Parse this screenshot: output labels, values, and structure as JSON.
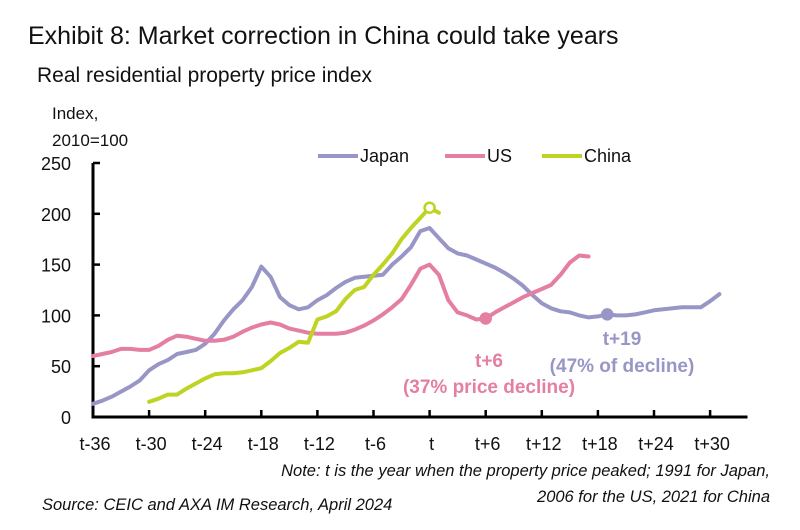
{
  "chart_data": {
    "type": "line",
    "title": "Exhibit 8: Market correction in China could take years",
    "subtitle": "Real residential property price index",
    "ylabel": "Index, 2010=100",
    "ylabel_lines": [
      "Index,",
      "2010=100"
    ],
    "xlabel": "",
    "ylim": [
      0,
      250
    ],
    "yticks": [
      0,
      50,
      100,
      150,
      200,
      250
    ],
    "xlim": [
      -36,
      34
    ],
    "xticks": [
      -36,
      -30,
      -24,
      -18,
      -12,
      -6,
      0,
      6,
      12,
      18,
      24,
      30
    ],
    "xtick_labels": [
      "t-36",
      "t-30",
      "t-24",
      "t-18",
      "t-12",
      "t-6",
      "t",
      "t+6",
      "t+12",
      "t+18",
      "t+24",
      "t+30"
    ],
    "grid": false,
    "legend_position": "top-center",
    "series": [
      {
        "name": "Japan",
        "color": "#9896c6",
        "x_start": -36,
        "values": [
          13,
          16,
          20,
          25,
          30,
          36,
          46,
          52,
          56,
          62,
          64,
          66,
          72,
          82,
          95,
          106,
          115,
          128,
          148,
          138,
          118,
          110,
          106,
          108,
          115,
          120,
          127,
          133,
          137,
          138,
          139,
          140,
          150,
          158,
          167,
          183,
          186,
          176,
          166,
          161,
          159,
          155,
          151,
          147,
          142,
          136,
          129,
          120,
          112,
          107,
          104,
          103,
          100,
          98,
          99,
          101,
          100,
          100,
          101,
          103,
          105,
          106,
          107,
          108,
          108,
          108,
          114,
          121
        ],
        "marker": {
          "x": 19,
          "value": 101,
          "style": "filled"
        }
      },
      {
        "name": "US",
        "color": "#e57ea3",
        "x_start": -36,
        "values": [
          60,
          62,
          64,
          67,
          67,
          66,
          66,
          70,
          76,
          80,
          79,
          77,
          75,
          75,
          76,
          79,
          84,
          88,
          91,
          93,
          91,
          87,
          85,
          83,
          82,
          82,
          82,
          83,
          86,
          90,
          95,
          101,
          108,
          116,
          130,
          146,
          150,
          140,
          115,
          103,
          100,
          96,
          97,
          103,
          108,
          113,
          118,
          122,
          126,
          130,
          140,
          152,
          159,
          158
        ],
        "marker": {
          "x": 6,
          "value": 97,
          "style": "filled"
        }
      },
      {
        "name": "China",
        "color": "#bed322",
        "x_start": -30,
        "values": [
          15,
          18,
          22,
          22,
          28,
          33,
          38,
          42,
          43,
          43,
          44,
          46,
          48,
          55,
          63,
          68,
          74,
          73,
          96,
          99,
          104,
          116,
          125,
          128,
          140,
          150,
          161,
          175,
          186,
          196,
          206,
          201
        ],
        "marker": {
          "x": 0,
          "value": 206,
          "style": "open"
        }
      }
    ],
    "annotations": [
      {
        "series": "US",
        "lines": [
          "t+6",
          "(37% price decline)"
        ],
        "color": "#e57ea3"
      },
      {
        "series": "Japan",
        "lines": [
          "t+19",
          "(47% of decline)"
        ],
        "color": "#9896c6"
      }
    ]
  },
  "note_lines": [
    "Note: t is the year when the property price peaked; 1991 for Japan,",
    "2006 for the US, 2021 for China"
  ],
  "source": "Source: CEIC and AXA IM Research, April 2024"
}
